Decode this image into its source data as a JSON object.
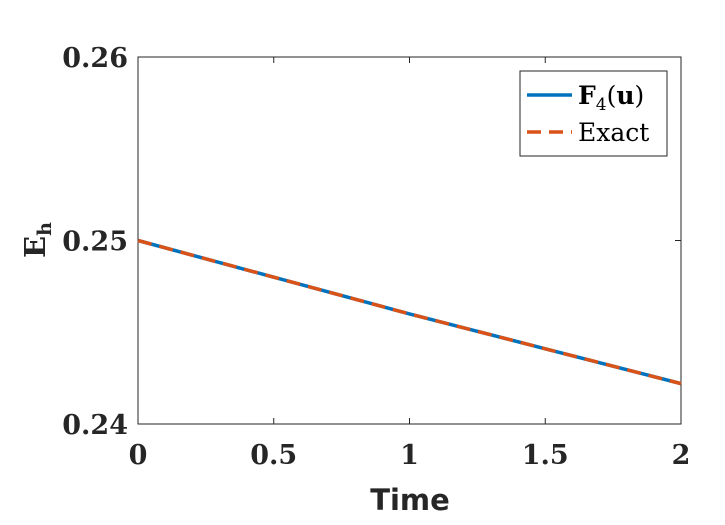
{
  "chart_data": {
    "type": "line",
    "xlabel": "Time",
    "ylabel_main": "E",
    "ylabel_sub": "h",
    "xlim": [
      0,
      2
    ],
    "ylim": [
      0.24,
      0.26
    ],
    "xticks": [
      0,
      0.5,
      1,
      1.5,
      2
    ],
    "xtick_labels": [
      "0",
      "0.5",
      "1",
      "1.5",
      "2"
    ],
    "yticks": [
      0.24,
      0.25,
      0.26
    ],
    "ytick_labels": [
      "0.24",
      "0.25",
      "0.26"
    ],
    "grid": false,
    "legend_position": "top-right",
    "series": [
      {
        "legend_main": "F",
        "legend_sub": "4",
        "legend_rest": "(u)",
        "color": "#0072BD",
        "style": "solid",
        "x": [
          0,
          0.5,
          1,
          1.5,
          2
        ],
        "y": [
          0.25,
          0.248,
          0.246,
          0.2441,
          0.2422
        ]
      },
      {
        "legend_main": "Exact",
        "color": "#D95319",
        "style": "dashed",
        "x": [
          0,
          0.5,
          1,
          1.5,
          2
        ],
        "y": [
          0.25,
          0.248,
          0.246,
          0.2441,
          0.2422
        ]
      }
    ]
  }
}
